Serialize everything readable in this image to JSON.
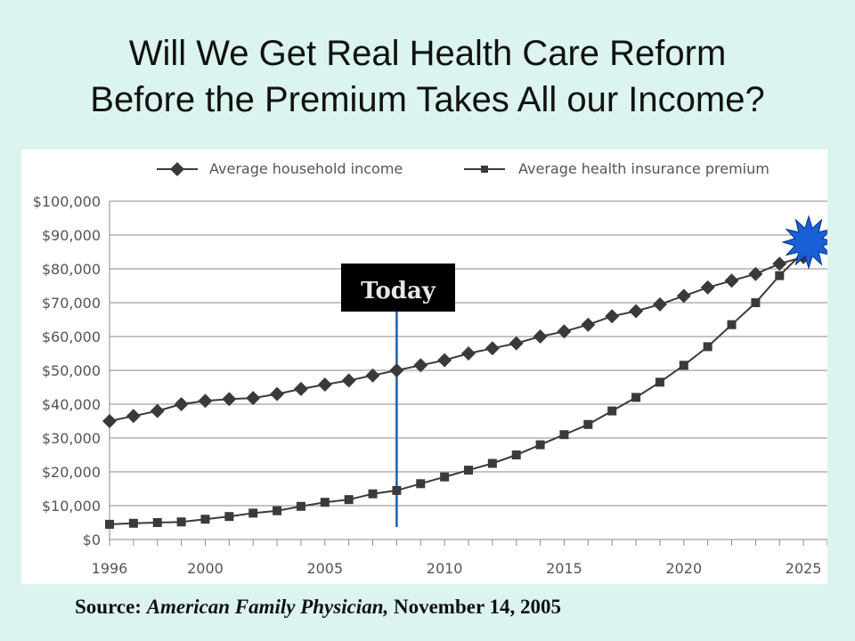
{
  "slide": {
    "title_line1": "Will We Get Real Health Care Reform",
    "title_line2": "Before the Premium Takes All our Income?",
    "source_prefix": "Source:",
    "source_journal": "American Family Physician,",
    "source_date": "November 14, 2005",
    "marker_label": "Today",
    "colors": {
      "background": "#dcf4ef",
      "series": "#3a3a3a",
      "today_line": "#1a5fb4",
      "burst": "#1a5fd6"
    }
  },
  "chart_data": {
    "type": "line",
    "title": "",
    "xlabel": "",
    "ylabel": "",
    "xlim": [
      1996,
      2026
    ],
    "ylim": [
      0,
      100000
    ],
    "x_ticks": [
      1996,
      2000,
      2005,
      2010,
      2015,
      2020,
      2025
    ],
    "y_ticks": [
      0,
      10000,
      20000,
      30000,
      40000,
      50000,
      60000,
      70000,
      80000,
      90000,
      100000
    ],
    "y_tick_labels": [
      "$0",
      "$10,000",
      "$20,000",
      "$30,000",
      "$40,000",
      "$50,000",
      "$60,000",
      "$70,000",
      "$80,000",
      "$90,000",
      "$100,000"
    ],
    "grid": "horizontal",
    "legend_position": "top",
    "annotation": {
      "label": "Today",
      "x": 2008
    },
    "x": [
      1996,
      1997,
      1998,
      1999,
      2000,
      2001,
      2002,
      2003,
      2004,
      2005,
      2006,
      2007,
      2008,
      2009,
      2010,
      2011,
      2012,
      2013,
      2014,
      2015,
      2016,
      2017,
      2018,
      2019,
      2020,
      2021,
      2022,
      2023,
      2024,
      2025
    ],
    "series": [
      {
        "name": "Average household income",
        "marker": "diamond",
        "values": [
          35000,
          36500,
          38000,
          40000,
          41000,
          41500,
          41800,
          43000,
          44500,
          45800,
          47000,
          48500,
          50000,
          51500,
          53000,
          55000,
          56500,
          58000,
          60000,
          61500,
          63500,
          66000,
          67500,
          69500,
          72000,
          74500,
          76500,
          78500,
          81500,
          83500
        ]
      },
      {
        "name": "Average health insurance premium",
        "marker": "square",
        "values": [
          4500,
          4800,
          5000,
          5200,
          6000,
          6800,
          7800,
          8500,
          9800,
          11000,
          11800,
          13500,
          14500,
          16500,
          18500,
          20500,
          22500,
          25000,
          28000,
          31000,
          34000,
          38000,
          42000,
          46500,
          51500,
          57000,
          63500,
          70000,
          78000,
          85000
        ]
      }
    ]
  }
}
